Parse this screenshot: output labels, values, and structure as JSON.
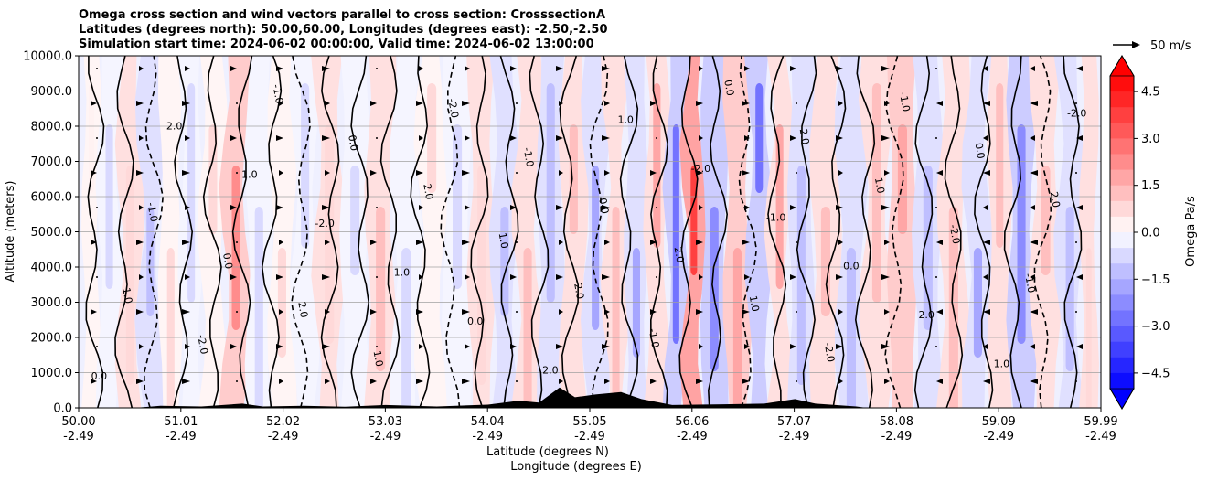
{
  "chart_data": {
    "type": "heatmap",
    "title_lines": [
      "Omega cross section and wind vectors parallel to cross section: CrosssectionA",
      "Latitudes (degrees north): 50.00,60.00, Longitudes (degrees east): -2.50,-2.50",
      "Simulation start time: 2024-06-02 00:00:00, Valid time: 2024-06-02 13:00:00"
    ],
    "ylabel": "Altitude (meters)",
    "xlabel_lines": [
      "Latitude (degrees N)",
      "Longitude (degrees E)"
    ],
    "ylim": [
      0,
      10000
    ],
    "y_ticks": [
      "0.0",
      "1000.0",
      "2000.0",
      "3000.0",
      "4000.0",
      "5000.0",
      "6000.0",
      "7000.0",
      "8000.0",
      "9000.0",
      "10000.0"
    ],
    "x_ticks": [
      {
        "lat": "50.00",
        "lon": "-2.49"
      },
      {
        "lat": "51.01",
        "lon": "-2.49"
      },
      {
        "lat": "52.02",
        "lon": "-2.49"
      },
      {
        "lat": "53.03",
        "lon": "-2.49"
      },
      {
        "lat": "54.04",
        "lon": "-2.49"
      },
      {
        "lat": "55.05",
        "lon": "-2.49"
      },
      {
        "lat": "56.06",
        "lon": "-2.49"
      },
      {
        "lat": "57.07",
        "lon": "-2.49"
      },
      {
        "lat": "58.08",
        "lon": "-2.49"
      },
      {
        "lat": "59.09",
        "lon": "-2.49"
      },
      {
        "lat": "59.99",
        "lon": "-2.49"
      }
    ],
    "grid": true,
    "colorbar": {
      "label": "Omega Pa/s",
      "range": [
        -5.0,
        5.0
      ],
      "ticks": [
        "4.5",
        "3.0",
        "1.5",
        "0.0",
        "−1.5",
        "−3.0",
        "−4.5"
      ],
      "levels": 20,
      "colormap": "bwr"
    },
    "quiver_key": {
      "label": "50 m/s"
    },
    "contour_labels": [
      "0.0",
      "1.0",
      "-1.0",
      "2.0",
      "-2.0"
    ],
    "bands": [
      {
        "lat": 50.1,
        "v": 0.2
      },
      {
        "lat": 50.3,
        "v": -0.4
      },
      {
        "lat": 50.5,
        "v": 0.5
      },
      {
        "lat": 50.7,
        "v": -0.6
      },
      {
        "lat": 50.9,
        "v": 0.3
      },
      {
        "lat": 51.1,
        "v": -0.3
      },
      {
        "lat": 51.3,
        "v": 0.4
      },
      {
        "lat": 51.55,
        "v": 1.2
      },
      {
        "lat": 51.75,
        "v": -0.5
      },
      {
        "lat": 52.0,
        "v": 0.4
      },
      {
        "lat": 52.2,
        "v": -0.5
      },
      {
        "lat": 52.45,
        "v": 0.5
      },
      {
        "lat": 52.7,
        "v": -0.3
      },
      {
        "lat": 52.95,
        "v": 0.6
      },
      {
        "lat": 53.2,
        "v": -0.4
      },
      {
        "lat": 53.45,
        "v": 0.4
      },
      {
        "lat": 53.7,
        "v": -0.5
      },
      {
        "lat": 53.95,
        "v": 0.5
      },
      {
        "lat": 54.15,
        "v": -0.6
      },
      {
        "lat": 54.4,
        "v": 0.6
      },
      {
        "lat": 54.6,
        "v": -0.8
      },
      {
        "lat": 54.85,
        "v": 0.7
      },
      {
        "lat": 55.05,
        "v": -0.9
      },
      {
        "lat": 55.25,
        "v": 0.8
      },
      {
        "lat": 55.45,
        "v": -1.0
      },
      {
        "lat": 55.65,
        "v": 0.9
      },
      {
        "lat": 55.85,
        "v": -1.5
      },
      {
        "lat": 56.0,
        "v": 2.0
      },
      {
        "lat": 56.2,
        "v": -1.2
      },
      {
        "lat": 56.45,
        "v": 1.0
      },
      {
        "lat": 56.65,
        "v": -1.4
      },
      {
        "lat": 56.85,
        "v": 0.9
      },
      {
        "lat": 57.05,
        "v": -0.8
      },
      {
        "lat": 57.3,
        "v": 0.8
      },
      {
        "lat": 57.55,
        "v": -0.6
      },
      {
        "lat": 57.8,
        "v": 0.6
      },
      {
        "lat": 58.05,
        "v": 1.0
      },
      {
        "lat": 58.3,
        "v": -0.7
      },
      {
        "lat": 58.55,
        "v": 0.6
      },
      {
        "lat": 58.8,
        "v": -1.0
      },
      {
        "lat": 59.0,
        "v": 0.7
      },
      {
        "lat": 59.2,
        "v": -1.3
      },
      {
        "lat": 59.45,
        "v": 0.8
      },
      {
        "lat": 59.7,
        "v": -0.6
      },
      {
        "lat": 59.9,
        "v": 0.5
      }
    ],
    "terrain": [
      {
        "lat": 50.0,
        "h": 0
      },
      {
        "lat": 50.55,
        "h": 0
      },
      {
        "lat": 50.8,
        "h": 60
      },
      {
        "lat": 51.2,
        "h": 40
      },
      {
        "lat": 51.6,
        "h": 120
      },
      {
        "lat": 51.8,
        "h": 40
      },
      {
        "lat": 52.2,
        "h": 60
      },
      {
        "lat": 52.6,
        "h": 30
      },
      {
        "lat": 53.0,
        "h": 80
      },
      {
        "lat": 53.5,
        "h": 40
      },
      {
        "lat": 54.0,
        "h": 90
      },
      {
        "lat": 54.3,
        "h": 200
      },
      {
        "lat": 54.5,
        "h": 150
      },
      {
        "lat": 54.7,
        "h": 580
      },
      {
        "lat": 54.85,
        "h": 300
      },
      {
        "lat": 55.05,
        "h": 380
      },
      {
        "lat": 55.3,
        "h": 450
      },
      {
        "lat": 55.5,
        "h": 250
      },
      {
        "lat": 55.8,
        "h": 80
      },
      {
        "lat": 56.3,
        "h": 100
      },
      {
        "lat": 56.7,
        "h": 120
      },
      {
        "lat": 57.0,
        "h": 250
      },
      {
        "lat": 57.2,
        "h": 120
      },
      {
        "lat": 57.6,
        "h": 40
      },
      {
        "lat": 57.7,
        "h": 0
      },
      {
        "lat": 59.99,
        "h": 0
      }
    ]
  }
}
